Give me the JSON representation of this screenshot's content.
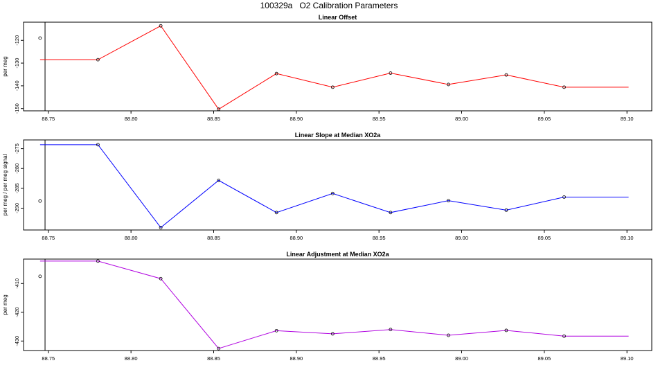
{
  "page": {
    "title": "100329a   O2 Calibration Parameters"
  },
  "chart_data": [
    {
      "type": "line",
      "title": "Linear Offset",
      "xlabel": "",
      "ylabel": "per meg",
      "xlim": [
        88.735,
        89.115
      ],
      "ylim": [
        -151,
        -112
      ],
      "x_ticks": [
        88.75,
        88.8,
        88.85,
        88.9,
        88.95,
        89.0,
        89.05,
        89.1
      ],
      "x_tick_labels": [
        "88.75",
        "88.80",
        "88.85",
        "88.90",
        "88.95",
        "89.00",
        "89.05",
        "89.10"
      ],
      "y_ticks": [
        -150,
        -140,
        -130,
        -120
      ],
      "y_tick_labels": [
        "-150",
        "-140",
        "-130",
        "-120"
      ],
      "vline_x": 88.748,
      "outlier": {
        "x": 88.745,
        "y": -119
      },
      "line_start_x": 88.745,
      "line_end_x": 89.101,
      "color": "#ff0000",
      "series": [
        {
          "x": [
            88.78,
            88.818,
            88.853,
            88.888,
            88.922,
            88.957,
            88.992,
            89.027,
            89.062
          ],
          "y": [
            -128.5,
            -113.6,
            -150.3,
            -134.6,
            -140.6,
            -134.4,
            -139.4,
            -135.2,
            -140.6
          ]
        }
      ]
    },
    {
      "type": "line",
      "title": "Linear Slope at Median XO2a",
      "xlabel": "",
      "ylabel": "per meg / per meg signal",
      "xlim": [
        88.735,
        89.115
      ],
      "ylim": [
        -295.5,
        -272.8
      ],
      "x_ticks": [
        88.75,
        88.8,
        88.85,
        88.9,
        88.95,
        89.0,
        89.05,
        89.1
      ],
      "x_tick_labels": [
        "88.75",
        "88.80",
        "88.85",
        "88.90",
        "88.95",
        "89.00",
        "89.05",
        "89.10"
      ],
      "y_ticks": [
        -290,
        -285,
        -280,
        -275
      ],
      "y_tick_labels": [
        "-290",
        "-285",
        "-280",
        "-275"
      ],
      "vline_x": 88.748,
      "outlier": {
        "x": 88.745,
        "y": -288.2
      },
      "line_start_x": 88.745,
      "line_end_x": 89.101,
      "color": "#0000ff",
      "series": [
        {
          "x": [
            88.78,
            88.818,
            88.853,
            88.888,
            88.922,
            88.957,
            88.992,
            89.027,
            89.062
          ],
          "y": [
            -274.0,
            -294.9,
            -283.0,
            -291.1,
            -286.3,
            -291.1,
            -288.1,
            -290.5,
            -287.2
          ]
        }
      ]
    },
    {
      "type": "line",
      "title": "Linear Adjustment at Median XO2a",
      "xlabel": "",
      "ylabel": "per meg",
      "xlim": [
        88.735,
        89.115
      ],
      "ylim": [
        -433.3,
        -401.5
      ],
      "x_ticks": [
        88.75,
        88.8,
        88.85,
        88.9,
        88.95,
        89.0,
        89.05,
        89.1
      ],
      "x_tick_labels": [
        "88.75",
        "88.80",
        "88.85",
        "88.90",
        "88.95",
        "89.00",
        "89.05",
        "89.10"
      ],
      "y_ticks": [
        -430,
        -420,
        -410
      ],
      "y_tick_labels": [
        "-430",
        "-420",
        "-410"
      ],
      "vline_x": 88.748,
      "outlier": {
        "x": 88.745,
        "y": -407.5
      },
      "line_start_x": 88.745,
      "line_end_x": 89.101,
      "color": "#b000e0",
      "series": [
        {
          "x": [
            88.78,
            88.818,
            88.853,
            88.888,
            88.922,
            88.957,
            88.992,
            89.027,
            89.062
          ],
          "y": [
            -402.2,
            -408.3,
            -432.6,
            -426.4,
            -427.5,
            -426.0,
            -428.0,
            -426.3,
            -428.3
          ]
        }
      ]
    }
  ]
}
